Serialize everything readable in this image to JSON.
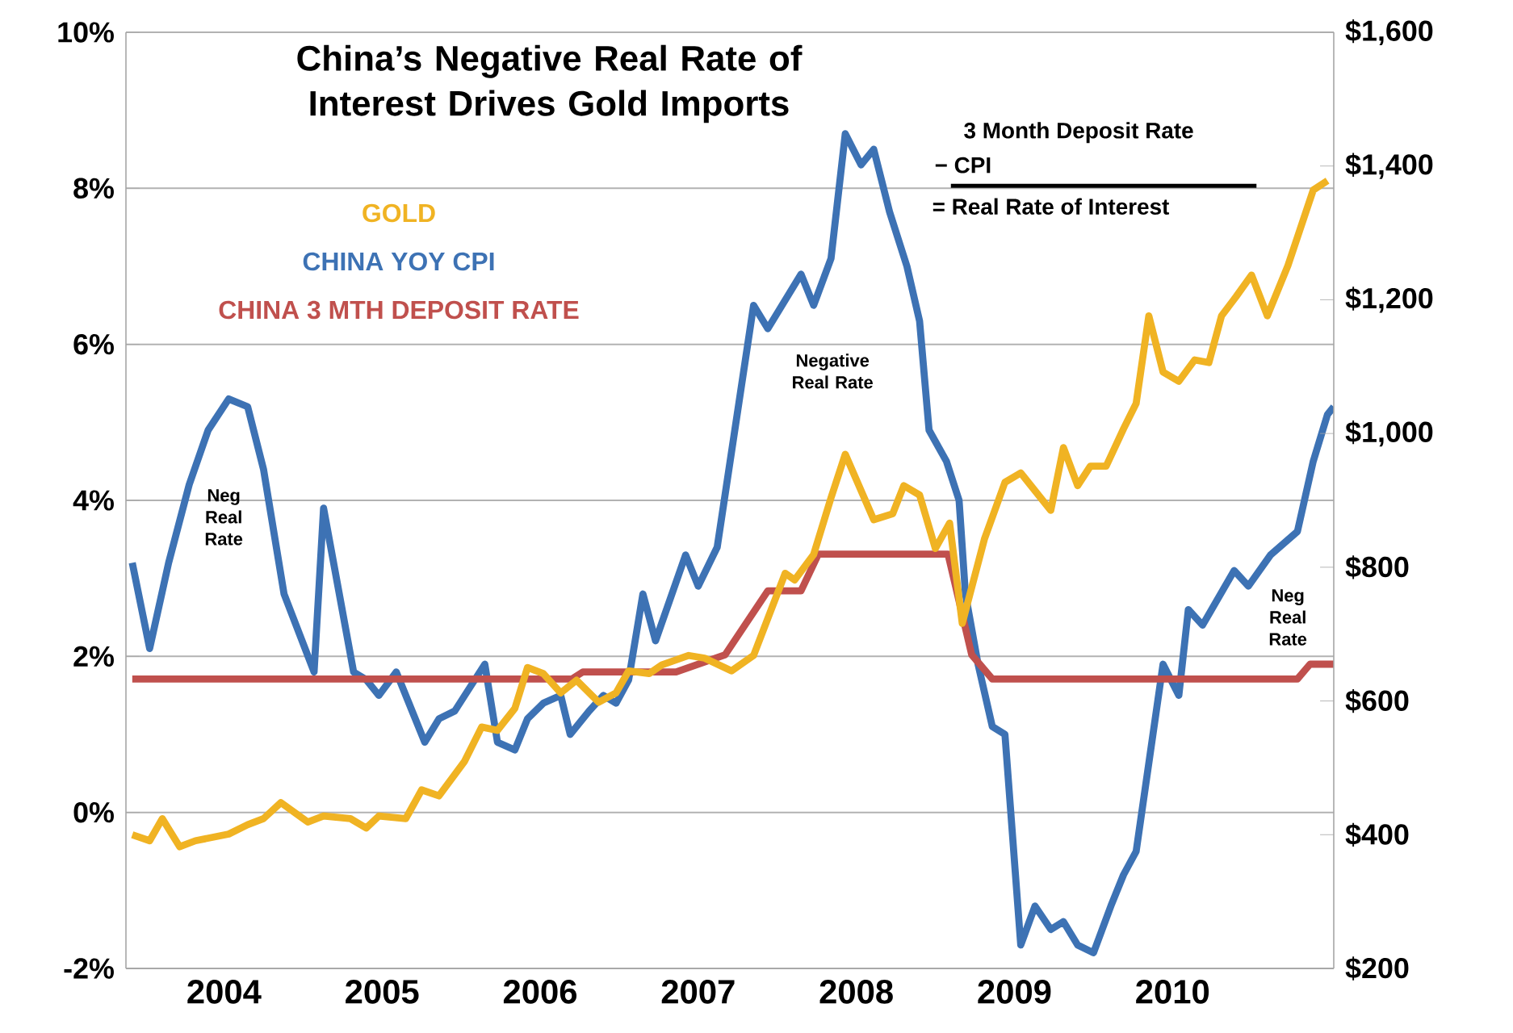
{
  "chart_data": {
    "type": "line",
    "title": "China’s Negative Real Rate of Interest Drives Gold Imports",
    "xlim": [
      2003.38,
      2011.02
    ],
    "xticks": [
      2004,
      2005,
      2006,
      2007,
      2008,
      2009,
      2010
    ],
    "ylim": [
      -2,
      10
    ],
    "yticks": [
      {
        "value": -2,
        "label": "-2%"
      },
      {
        "value": 0,
        "label": "0%"
      },
      {
        "value": 2,
        "label": "2%"
      },
      {
        "value": 4,
        "label": "4%"
      },
      {
        "value": 6,
        "label": "6%"
      },
      {
        "value": 8,
        "label": "8%"
      },
      {
        "value": 10,
        "label": "10%"
      }
    ],
    "y2lim": [
      200,
      1600
    ],
    "y2ticks": [
      {
        "value": 200,
        "label": "$200"
      },
      {
        "value": 400,
        "label": "$400"
      },
      {
        "value": 600,
        "label": "$600"
      },
      {
        "value": 800,
        "label": "$800"
      },
      {
        "value": 1000,
        "label": "$1,000"
      },
      {
        "value": 1200,
        "label": "$1,200"
      },
      {
        "value": 1400,
        "label": "$1,400"
      },
      {
        "value": 1600,
        "label": "$1,600"
      }
    ],
    "grid": "y",
    "legend": "top left",
    "marker": "none",
    "line_style": "solid",
    "series": [
      {
        "name": "GOLD",
        "color": "#f0b323",
        "axis": "y2",
        "x": [
          2003.42,
          2003.53,
          2003.61,
          2003.72,
          2003.82,
          2004.03,
          2004.15,
          2004.25,
          2004.36,
          2004.53,
          2004.63,
          2004.8,
          2004.9,
          2004.98,
          2005.15,
          2005.25,
          2005.36,
          2005.52,
          2005.63,
          2005.73,
          2005.84,
          2005.92,
          2006.02,
          2006.13,
          2006.23,
          2006.37,
          2006.48,
          2006.56,
          2006.69,
          2006.77,
          2006.94,
          2007.04,
          2007.21,
          2007.35,
          2007.55,
          2007.61,
          2007.73,
          2007.84,
          2007.93,
          2008.11,
          2008.23,
          2008.3,
          2008.4,
          2008.5,
          2008.59,
          2008.67,
          2008.81,
          2008.94,
          2009.04,
          2009.23,
          2009.31,
          2009.4,
          2009.48,
          2009.58,
          2009.69,
          2009.77,
          2009.85,
          2009.94,
          2010.04,
          2010.14,
          2010.23,
          2010.31,
          2010.4,
          2010.5,
          2010.6,
          2010.73,
          2010.89,
          2010.98
        ],
        "values": [
          400,
          391,
          424,
          382,
          391,
          401,
          415,
          424,
          448,
          419,
          428,
          424,
          410,
          428,
          424,
          467,
          458,
          509,
          561,
          556,
          589,
          650,
          641,
          612,
          631,
          598,
          612,
          645,
          641,
          654,
          668,
          664,
          645,
          668,
          791,
          781,
          819,
          904,
          969,
          871,
          880,
          922,
          908,
          828,
          866,
          716,
          842,
          927,
          941,
          885,
          979,
          922,
          951,
          951,
          1007,
          1045,
          1176,
          1092,
          1078,
          1110,
          1106,
          1176,
          1204,
          1237,
          1176,
          1251,
          1364,
          1378
        ]
      },
      {
        "name": "CHINA YOY CPI",
        "color": "#3d72b4",
        "x": [
          2003.42,
          2003.53,
          2003.65,
          2003.78,
          2003.9,
          2004.03,
          2004.15,
          2004.25,
          2004.38,
          2004.57,
          2004.63,
          2004.82,
          2004.9,
          2004.98,
          2005.09,
          2005.27,
          2005.36,
          2005.46,
          2005.65,
          2005.73,
          2005.84,
          2005.92,
          2006.02,
          2006.13,
          2006.19,
          2006.31,
          2006.4,
          2006.48,
          2006.56,
          2006.65,
          2006.73,
          2006.92,
          2007.0,
          2007.12,
          2007.35,
          2007.44,
          2007.65,
          2007.73,
          2007.84,
          2007.93,
          2008.03,
          2008.11,
          2008.21,
          2008.32,
          2008.4,
          2008.46,
          2008.57,
          2008.65,
          2008.69,
          2008.77,
          2008.86,
          2008.94,
          2009.04,
          2009.13,
          2009.23,
          2009.31,
          2009.4,
          2009.5,
          2009.61,
          2009.69,
          2009.77,
          2009.94,
          2010.04,
          2010.1,
          2010.19,
          2010.39,
          2010.48,
          2010.62,
          2010.79,
          2010.89,
          2010.98,
          2011.02
        ],
        "values": [
          3.2,
          2.1,
          3.2,
          4.2,
          4.9,
          5.3,
          5.2,
          4.4,
          2.8,
          1.8,
          3.9,
          1.8,
          1.7,
          1.5,
          1.8,
          0.9,
          1.2,
          1.3,
          1.9,
          0.9,
          0.8,
          1.2,
          1.4,
          1.5,
          1.0,
          1.3,
          1.5,
          1.4,
          1.7,
          2.8,
          2.2,
          3.3,
          2.9,
          3.4,
          6.5,
          6.2,
          6.9,
          6.5,
          7.1,
          8.7,
          8.3,
          8.5,
          7.7,
          7.0,
          6.3,
          4.9,
          4.5,
          4.0,
          2.8,
          1.9,
          1.1,
          1.0,
          -1.7,
          -1.2,
          -1.5,
          -1.4,
          -1.7,
          -1.8,
          -1.2,
          -0.8,
          -0.5,
          1.9,
          1.5,
          2.6,
          2.4,
          3.1,
          2.9,
          3.3,
          3.6,
          4.5,
          5.1,
          5.2
        ]
      },
      {
        "name": "CHINA 3 MTH DEPOSIT RATE",
        "color": "#c0504d",
        "x": [
          2003.42,
          2006.2,
          2006.27,
          2006.86,
          2007.17,
          2007.44,
          2007.65,
          2007.76,
          2008.58,
          2008.73,
          2008.86,
          2010.79,
          2010.87,
          2011.02
        ],
        "values": [
          1.71,
          1.71,
          1.8,
          1.8,
          2.02,
          2.84,
          2.84,
          3.31,
          3.31,
          2.02,
          1.71,
          1.71,
          1.9,
          1.9
        ]
      }
    ],
    "annotations": [
      "Neg Real Rate",
      "Negative Real Rate",
      "Neg Real Rate",
      "3 Month Deposit Rate",
      "− CPI",
      "= Real Rate of Interest"
    ]
  }
}
